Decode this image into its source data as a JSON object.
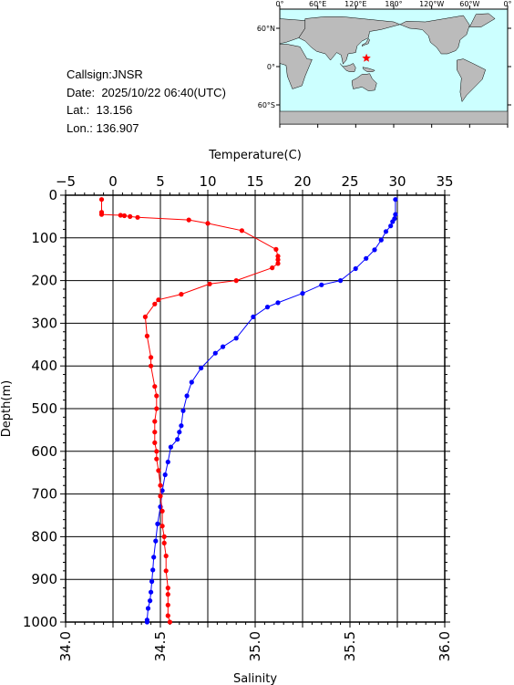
{
  "station": {
    "callsign_label": "Callsign:",
    "callsign": "JNSR",
    "date_label": "Date:",
    "date": "2025/10/22 06:40(UTC)",
    "lat_label": "Lat.:",
    "lat": "13.156",
    "lon_label": "Lon.:",
    "lon": "136.907"
  },
  "map": {
    "lon_ticks": [
      "0°",
      "60°E",
      "120°E",
      "180°",
      "120°W",
      "60°W",
      "0°"
    ],
    "lat_ticks": [
      "60°N",
      "0°",
      "60°S"
    ],
    "marker_color": "#ff0000",
    "ocean_color": "#ccffff",
    "land_color": "#bbbbbb"
  },
  "chart_data": {
    "type": "line",
    "title": "",
    "y_axis": {
      "label": "Depth(m)",
      "range": [
        0,
        1000
      ],
      "inverted": true,
      "ticks": [
        "0",
        "100",
        "200",
        "300",
        "400",
        "500",
        "600",
        "700",
        "800",
        "900",
        "1000"
      ]
    },
    "x_top": {
      "label": "Temperature(C)",
      "range": [
        -5,
        35
      ],
      "ticks": [
        "−5",
        "0",
        "5",
        "10",
        "15",
        "20",
        "25",
        "30",
        "35"
      ]
    },
    "x_bottom": {
      "label": "Salinity",
      "range": [
        34.0,
        36.0
      ],
      "ticks": [
        "34.0",
        "34.5",
        "35.0",
        "35.5",
        "36.0"
      ]
    },
    "grid": true,
    "series": [
      {
        "quantity": "temperature",
        "axis": "top",
        "color": "#0000ff",
        "points": [
          [
            29.8,
            10
          ],
          [
            29.8,
            45
          ],
          [
            29.7,
            55
          ],
          [
            29.5,
            62
          ],
          [
            29.3,
            72
          ],
          [
            28.8,
            85
          ],
          [
            28.3,
            105
          ],
          [
            27.6,
            128
          ],
          [
            26.7,
            148
          ],
          [
            25.6,
            172
          ],
          [
            24.0,
            200
          ],
          [
            22.0,
            210
          ],
          [
            20.0,
            230
          ],
          [
            17.4,
            252
          ],
          [
            16.3,
            262
          ],
          [
            14.8,
            285
          ],
          [
            13.0,
            335
          ],
          [
            11.6,
            355
          ],
          [
            10.8,
            370
          ],
          [
            9.3,
            405
          ],
          [
            8.3,
            438
          ],
          [
            7.8,
            470
          ],
          [
            7.4,
            505
          ],
          [
            7.2,
            540
          ],
          [
            7.0,
            555
          ],
          [
            6.8,
            572
          ],
          [
            6.1,
            590
          ],
          [
            5.8,
            625
          ],
          [
            5.5,
            655
          ],
          [
            5.2,
            692
          ],
          [
            5.0,
            730
          ],
          [
            4.7,
            770
          ],
          [
            4.5,
            810
          ],
          [
            4.3,
            848
          ],
          [
            4.2,
            878
          ],
          [
            4.1,
            905
          ],
          [
            4.0,
            930
          ],
          [
            3.9,
            950
          ],
          [
            3.7,
            968
          ],
          [
            3.6,
            995
          ],
          [
            3.6,
            1000
          ]
        ]
      },
      {
        "quantity": "salinity",
        "axis": "bottom",
        "color": "#ff0000",
        "points": [
          [
            34.19,
            10
          ],
          [
            34.19,
            40
          ],
          [
            34.19,
            45
          ],
          [
            34.29,
            47
          ],
          [
            34.31,
            48
          ],
          [
            34.34,
            50
          ],
          [
            34.38,
            52
          ],
          [
            34.65,
            58
          ],
          [
            34.75,
            66
          ],
          [
            34.93,
            83
          ],
          [
            35.11,
            127
          ],
          [
            35.12,
            143
          ],
          [
            35.12,
            151
          ],
          [
            35.12,
            160
          ],
          [
            35.09,
            170
          ],
          [
            34.9,
            200
          ],
          [
            34.76,
            208
          ],
          [
            34.61,
            232
          ],
          [
            34.49,
            245
          ],
          [
            34.47,
            255
          ],
          [
            34.42,
            285
          ],
          [
            34.43,
            330
          ],
          [
            34.45,
            380
          ],
          [
            34.45,
            400
          ],
          [
            34.47,
            448
          ],
          [
            34.48,
            470
          ],
          [
            34.48,
            500
          ],
          [
            34.47,
            530
          ],
          [
            34.47,
            555
          ],
          [
            34.47,
            580
          ],
          [
            34.48,
            600
          ],
          [
            34.48,
            618
          ],
          [
            34.49,
            645
          ],
          [
            34.5,
            680
          ],
          [
            34.5,
            705
          ],
          [
            34.51,
            740
          ],
          [
            34.51,
            775
          ],
          [
            34.52,
            800
          ],
          [
            34.52,
            815
          ],
          [
            34.53,
            845
          ],
          [
            34.53,
            880
          ],
          [
            34.54,
            920
          ],
          [
            34.54,
            935
          ],
          [
            34.54,
            960
          ],
          [
            34.54,
            985
          ],
          [
            34.55,
            1000
          ]
        ]
      }
    ]
  }
}
